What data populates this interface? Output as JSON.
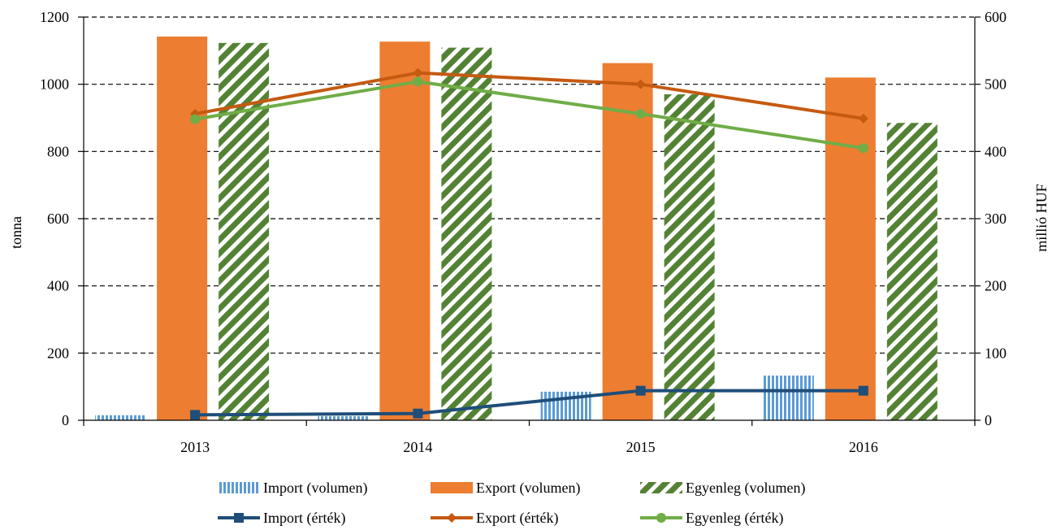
{
  "chart_data": {
    "type": "bar",
    "categories": [
      "2013",
      "2014",
      "2015",
      "2016"
    ],
    "ylabel": "tonna",
    "y2label": "millió HUF",
    "ylim": [
      0,
      1200
    ],
    "y2lim": [
      0,
      600
    ],
    "yticks": [
      "0",
      "200",
      "400",
      "600",
      "800",
      "1000",
      "1200"
    ],
    "y2ticks": [
      "0",
      "100",
      "200",
      "300",
      "400",
      "500",
      "600"
    ],
    "grid": true,
    "legend_position": "bottom",
    "bar_series": [
      {
        "name": "Import (volumen)",
        "values": [
          15,
          12,
          85,
          133
        ],
        "color": "#5b9bd5",
        "pattern": "vertical-stripes"
      },
      {
        "name": "Export (volumen)",
        "values": [
          1142,
          1127,
          1063,
          1020
        ],
        "color": "#ed7d31",
        "pattern": "solid"
      },
      {
        "name": "Egyenleg (volumen)",
        "values": [
          1123,
          1109,
          970,
          885
        ],
        "color": "#70ad47",
        "pattern": "diagonal-stripes"
      }
    ],
    "line_series": [
      {
        "name": "Import (érték)",
        "values": [
          8,
          10,
          44,
          44
        ],
        "axis": "right",
        "color": "#1f4e79",
        "marker": "square"
      },
      {
        "name": "Export (érték)",
        "values": [
          456,
          517,
          500,
          449
        ],
        "axis": "right",
        "color": "#c55a11",
        "marker": "diamond"
      },
      {
        "name": "Egyenleg (érték)",
        "values": [
          448,
          504,
          456,
          405
        ],
        "axis": "right",
        "color": "#70ad47",
        "marker": "circle"
      }
    ]
  }
}
